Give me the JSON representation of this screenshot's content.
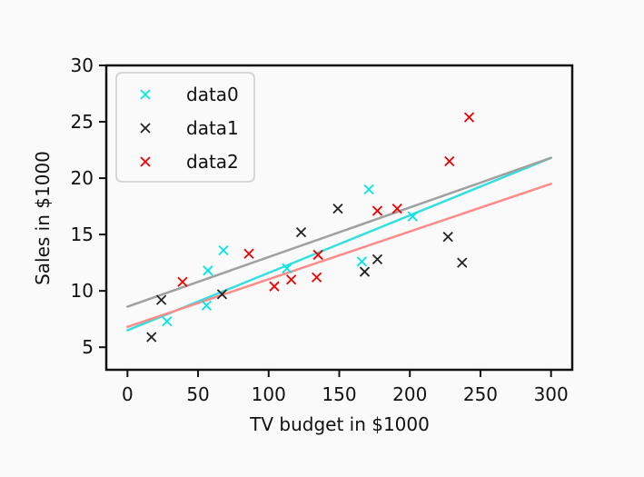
{
  "chart_data": {
    "type": "scatter",
    "xlabel": "TV budget in $1000",
    "ylabel": "Sales in $1000",
    "xlim": [
      -15,
      315
    ],
    "ylim": [
      3,
      30
    ],
    "xticks": [
      0,
      50,
      100,
      150,
      200,
      250,
      300
    ],
    "yticks": [
      5,
      10,
      15,
      20,
      25,
      30
    ],
    "grid": false,
    "legend_position": "top-left",
    "series": [
      {
        "name": "data0",
        "color": "#00e5e5",
        "points": [
          [
            28,
            7.3
          ],
          [
            56,
            8.7
          ],
          [
            57,
            11.8
          ],
          [
            68,
            13.6
          ],
          [
            113,
            12.0
          ],
          [
            166,
            12.6
          ],
          [
            171,
            19.0
          ],
          [
            202,
            16.6
          ]
        ],
        "fit": {
          "x": [
            0,
            300
          ],
          "y": [
            6.5,
            21.8
          ],
          "color": "#33e0e0"
        }
      },
      {
        "name": "data1",
        "color": "#222222",
        "points": [
          [
            17,
            5.9
          ],
          [
            24,
            9.2
          ],
          [
            67,
            9.7
          ],
          [
            123,
            15.2
          ],
          [
            149,
            17.3
          ],
          [
            168,
            11.7
          ],
          [
            177,
            12.8
          ],
          [
            227,
            14.8
          ],
          [
            237,
            12.5
          ]
        ],
        "fit": {
          "x": [
            0,
            300
          ],
          "y": [
            8.6,
            21.8
          ],
          "color": "#a0a0a0"
        }
      },
      {
        "name": "data2",
        "color": "#ee0000",
        "points": [
          [
            39,
            10.8
          ],
          [
            86,
            13.3
          ],
          [
            104,
            10.4
          ],
          [
            116,
            11.0
          ],
          [
            134,
            11.2
          ],
          [
            135,
            13.2
          ],
          [
            177,
            17.1
          ],
          [
            191,
            17.3
          ],
          [
            228,
            21.5
          ],
          [
            242,
            25.4
          ]
        ],
        "fit": {
          "x": [
            0,
            300
          ],
          "y": [
            6.8,
            19.5
          ],
          "color": "#ff8a8a"
        }
      }
    ]
  }
}
